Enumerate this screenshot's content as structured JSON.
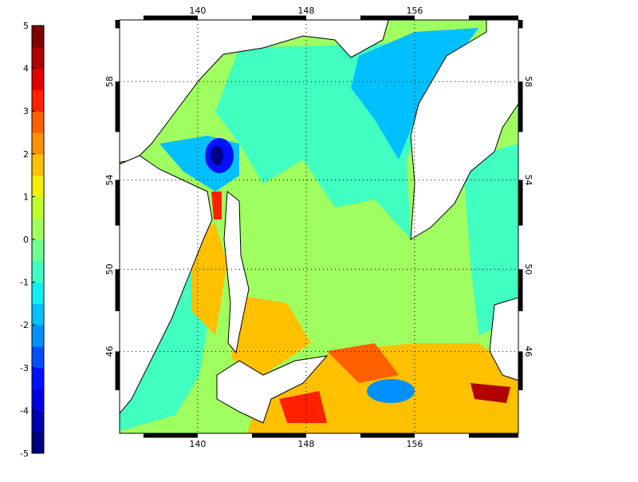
{
  "colorbar": {
    "clim": [
      -5,
      5
    ],
    "ticks": [
      -5,
      -4,
      -3,
      -2,
      -1,
      0,
      1,
      2,
      3,
      4,
      5
    ],
    "colors": [
      "#000080",
      "#0000b0",
      "#0000e0",
      "#0010ff",
      "#0050ff",
      "#0090ff",
      "#00c0ff",
      "#10f0f0",
      "#40ffc0",
      "#70ff90",
      "#a0ff60",
      "#c0ff30",
      "#f0f000",
      "#ffc000",
      "#ff9000",
      "#ff6000",
      "#ff2000",
      "#e00000",
      "#b00000",
      "#800000"
    ]
  },
  "map": {
    "xlim": [
      134.24,
      163.65
    ],
    "ylim": [
      41.7,
      60.3
    ],
    "xticks": [
      140,
      148,
      156
    ],
    "yticks": [
      46,
      50,
      54,
      58
    ]
  }
}
